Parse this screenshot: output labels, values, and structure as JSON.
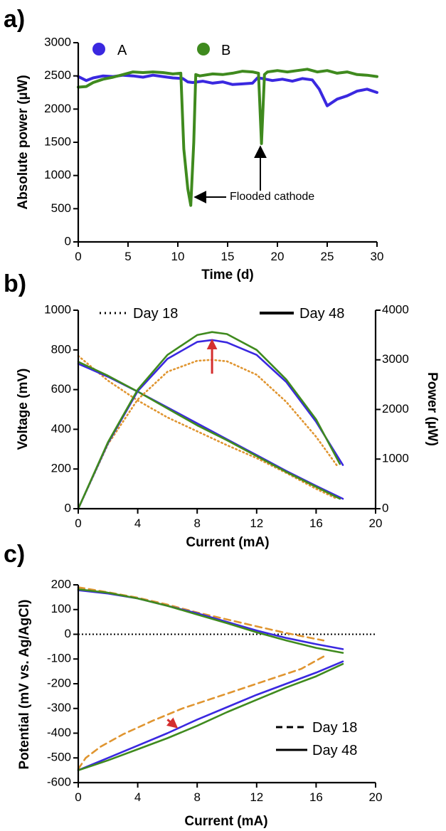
{
  "colors": {
    "blue": "#3a28e0",
    "green": "#3f8a1e",
    "orange": "#e09530",
    "red": "#d42f2f",
    "axis": "#000000"
  },
  "chart_data": [
    {
      "panel": "a)",
      "type": "line",
      "xlabel": "Time (d)",
      "ylabel": "Absolute power (µW)",
      "xlim": [
        0,
        30
      ],
      "ylim": [
        0,
        3000
      ],
      "x_ticks": [
        0,
        5,
        10,
        15,
        20,
        25,
        30
      ],
      "y_ticks": [
        0,
        500,
        1000,
        1500,
        2000,
        2500,
        3000
      ],
      "legend": [
        "A",
        "B"
      ],
      "legend_position": "top-left",
      "annotation": "Flooded cathode",
      "series": [
        {
          "name": "A",
          "color": "blue",
          "x": [
            0,
            0.8,
            1.5,
            2.5,
            3.5,
            4.5,
            5.5,
            6.5,
            7.5,
            8.5,
            9.5,
            10.5,
            11.0,
            11.5,
            12.5,
            13.5,
            14.5,
            15.5,
            16.5,
            17.5,
            18.0,
            18.5,
            19.5,
            20.5,
            21.5,
            22.5,
            23.5,
            24.2,
            25.0,
            26.0,
            27.0,
            28.0,
            29.0,
            30.0
          ],
          "y": [
            2490,
            2430,
            2470,
            2500,
            2490,
            2510,
            2500,
            2480,
            2510,
            2490,
            2470,
            2460,
            2410,
            2400,
            2420,
            2390,
            2410,
            2370,
            2380,
            2390,
            2470,
            2460,
            2430,
            2450,
            2420,
            2460,
            2440,
            2300,
            2050,
            2150,
            2200,
            2270,
            2300,
            2250
          ]
        },
        {
          "name": "B",
          "color": "green",
          "x": [
            0,
            0.8,
            1.5,
            2.5,
            3.5,
            4.5,
            5.5,
            6.5,
            7.5,
            8.5,
            9.5,
            10.3,
            10.6,
            11.0,
            11.3,
            11.6,
            11.8,
            12.2,
            13.5,
            14.5,
            15.5,
            16.5,
            17.5,
            18.1,
            18.4,
            18.7,
            19.0,
            20.0,
            21.0,
            22.0,
            23.0,
            24.0,
            25.0,
            26.0,
            27.0,
            28.0,
            29.0,
            30.0
          ],
          "y": [
            2330,
            2340,
            2400,
            2450,
            2480,
            2520,
            2560,
            2550,
            2560,
            2550,
            2530,
            2540,
            1400,
            800,
            550,
            1500,
            2520,
            2500,
            2530,
            2520,
            2540,
            2570,
            2560,
            2540,
            1480,
            2520,
            2560,
            2580,
            2560,
            2580,
            2600,
            2560,
            2580,
            2540,
            2560,
            2520,
            2510,
            2490
          ]
        }
      ]
    },
    {
      "panel": "b)",
      "type": "line",
      "xlabel": "Current (mA)",
      "ylabel": "Voltage (mV)",
      "y2label": "Power  (µW)",
      "xlim": [
        0,
        20
      ],
      "ylim": [
        0,
        1000
      ],
      "y2lim": [
        0,
        4000
      ],
      "x_ticks": [
        0,
        4,
        8,
        12,
        16,
        20
      ],
      "y_ticks": [
        0,
        200,
        400,
        600,
        800,
        1000
      ],
      "y2_ticks": [
        0,
        1000,
        2000,
        3000,
        4000
      ],
      "legend": [
        "Day 18",
        "Day 48"
      ],
      "legend_position": "top",
      "series": [
        {
          "axis": "left",
          "color": "orange",
          "style": "dotted",
          "x": [
            0,
            2,
            4,
            6,
            8,
            10,
            12,
            14,
            16,
            17.4
          ],
          "y": [
            770,
            645,
            545,
            460,
            390,
            320,
            255,
            180,
            100,
            50
          ]
        },
        {
          "axis": "left",
          "color": "blue",
          "style": "solid",
          "x": [
            0,
            2,
            4,
            6,
            8,
            10,
            12,
            14,
            16,
            17.8
          ],
          "y": [
            730,
            665,
            590,
            510,
            430,
            350,
            270,
            190,
            115,
            50
          ]
        },
        {
          "axis": "left",
          "color": "green",
          "style": "solid",
          "x": [
            0,
            2,
            4,
            6,
            8,
            10,
            12,
            14,
            16,
            17.6
          ],
          "y": [
            740,
            670,
            590,
            505,
            420,
            345,
            265,
            185,
            110,
            50
          ]
        },
        {
          "axis": "right",
          "color": "orange",
          "style": "dotted",
          "x": [
            0,
            2,
            4,
            6,
            8,
            9,
            10,
            12,
            14,
            16,
            17.4
          ],
          "y": [
            0,
            1300,
            2200,
            2760,
            2980,
            3000,
            2970,
            2700,
            2150,
            1450,
            870
          ]
        },
        {
          "axis": "right",
          "color": "blue",
          "style": "solid",
          "x": [
            0,
            2,
            4,
            6,
            8,
            9,
            10,
            12,
            14,
            16,
            17.8
          ],
          "y": [
            0,
            1320,
            2370,
            3020,
            3360,
            3400,
            3350,
            3100,
            2550,
            1750,
            880
          ]
        },
        {
          "axis": "right",
          "color": "green",
          "style": "solid",
          "x": [
            0,
            2,
            4,
            6,
            8,
            9,
            10,
            12,
            14,
            16,
            17.6
          ],
          "y": [
            0,
            1340,
            2400,
            3100,
            3500,
            3560,
            3520,
            3200,
            2600,
            1800,
            900
          ]
        }
      ],
      "arrow": {
        "color": "red",
        "from": [
          9,
          680
        ],
        "to": [
          9,
          845
        ]
      }
    },
    {
      "panel": "c)",
      "type": "line",
      "xlabel": "Current (mA)",
      "ylabel": "Potential (mV vs. Ag/AgCl)",
      "xlim": [
        0,
        20
      ],
      "ylim": [
        -600,
        200
      ],
      "x_ticks": [
        0,
        4,
        8,
        12,
        16,
        20
      ],
      "y_ticks": [
        -600,
        -500,
        -400,
        -300,
        -200,
        -100,
        0,
        100,
        200
      ],
      "legend": [
        "Day 18",
        "Day 48"
      ],
      "legend_position": "bottom-right",
      "zero_line": true,
      "series": [
        {
          "color": "orange",
          "style": "dashed",
          "x": [
            0,
            2,
            4,
            6,
            8,
            10,
            12,
            14,
            16.5
          ],
          "y": [
            190,
            170,
            148,
            120,
            88,
            60,
            32,
            5,
            -25
          ]
        },
        {
          "color": "blue",
          "style": "solid",
          "x": [
            0,
            2,
            4,
            6,
            8,
            10,
            12,
            14,
            16,
            17.8
          ],
          "y": [
            178,
            165,
            145,
            115,
            85,
            50,
            15,
            -15,
            -40,
            -60
          ]
        },
        {
          "color": "green",
          "style": "solid",
          "x": [
            0,
            2,
            4,
            6,
            8,
            10,
            12,
            14,
            16,
            17.8
          ],
          "y": [
            182,
            168,
            145,
            115,
            80,
            45,
            8,
            -25,
            -55,
            -75
          ]
        },
        {
          "color": "orange",
          "style": "dashed",
          "x": [
            0,
            0.5,
            1.5,
            3,
            5,
            7,
            9,
            11,
            13,
            15,
            16.5
          ],
          "y": [
            -545,
            -500,
            -455,
            -405,
            -350,
            -300,
            -260,
            -220,
            -180,
            -140,
            -90
          ]
        },
        {
          "color": "blue",
          "style": "solid",
          "x": [
            0,
            2,
            4,
            6,
            8,
            10,
            12,
            14,
            16,
            17.8
          ],
          "y": [
            -550,
            -500,
            -450,
            -400,
            -345,
            -295,
            -245,
            -200,
            -155,
            -110
          ]
        },
        {
          "color": "green",
          "style": "solid",
          "x": [
            0,
            2,
            4,
            6,
            8,
            10,
            12,
            14,
            16,
            17.8
          ],
          "y": [
            -550,
            -510,
            -465,
            -420,
            -370,
            -315,
            -265,
            -215,
            -170,
            -120
          ]
        }
      ],
      "arrow": {
        "color": "red",
        "from": [
          6,
          -345
        ],
        "to": [
          6.6,
          -375
        ]
      }
    }
  ]
}
